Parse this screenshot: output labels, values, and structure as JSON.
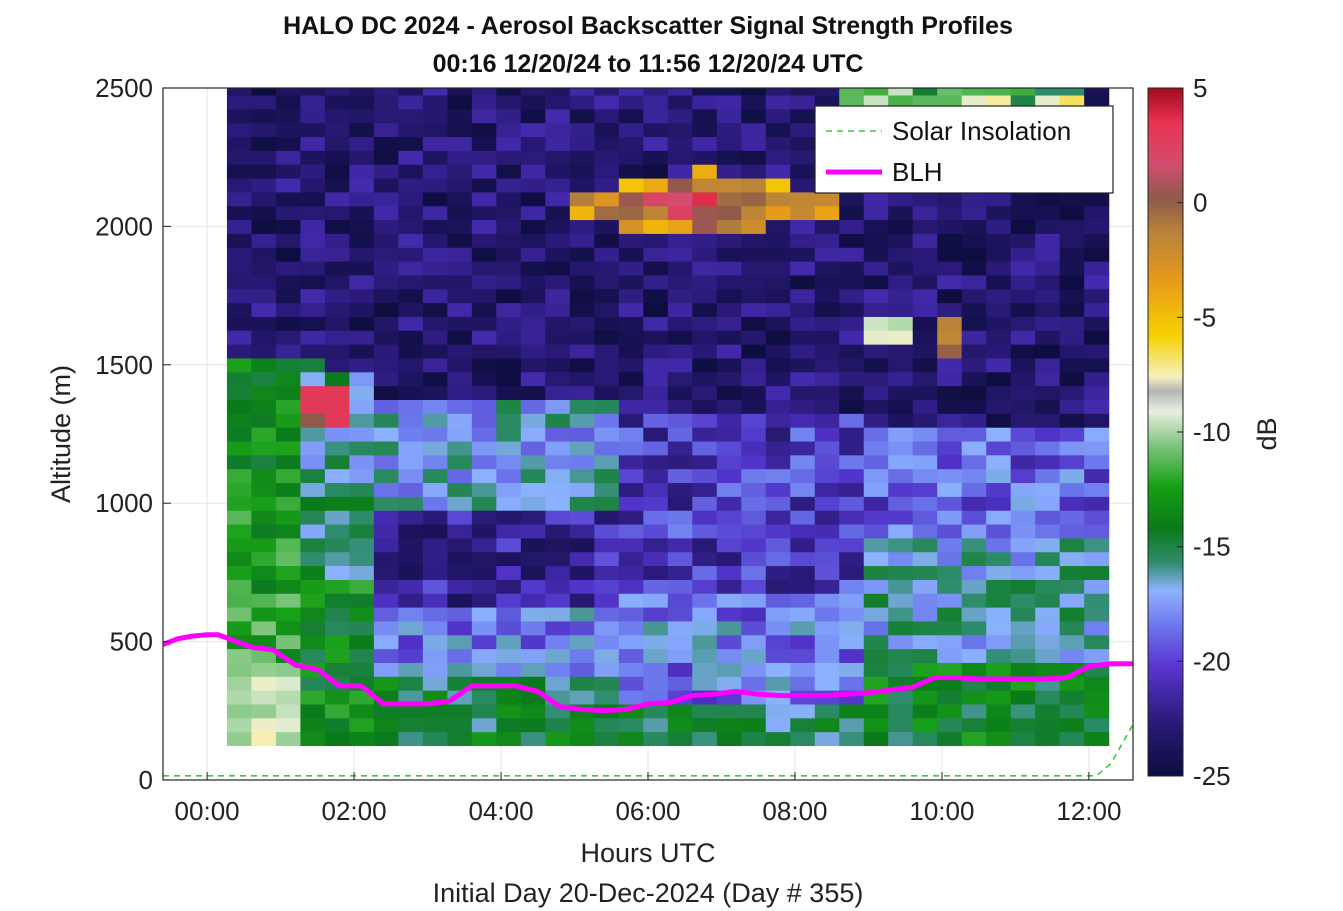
{
  "chart_data": {
    "type": "heatmap",
    "title": "HALO DC 2024 - Aerosol Backscatter Signal Strength Profiles",
    "subtitle": "00:16 12/20/24 to 11:56 12/20/24  UTC",
    "xlabel": "Hours UTC",
    "xsublabel": "Initial Day 20-Dec-2024 (Day # 355)",
    "ylabel": "Altitude (m)",
    "colorbar_label": "dB",
    "xlim": [
      -0.6,
      12.6
    ],
    "ylim": [
      0,
      2500
    ],
    "xticks": [
      0,
      2,
      4,
      6,
      8,
      10,
      12
    ],
    "xtick_labels": [
      "00:00",
      "02:00",
      "04:00",
      "06:00",
      "08:00",
      "10:00",
      "12:00"
    ],
    "yticks": [
      0,
      500,
      1000,
      1500,
      2000,
      2500
    ],
    "ytick_labels": [
      "0",
      "500",
      "1000",
      "1500",
      "2000",
      "2500"
    ],
    "clim": [
      -25,
      5
    ],
    "cticks": [
      5,
      0,
      -5,
      -10,
      -15,
      -20,
      -25
    ],
    "ctick_labels": [
      "5",
      "0",
      "-5",
      "-10",
      "-15",
      "-20",
      "-25"
    ],
    "grid": true,
    "legend": {
      "placement": "top-right",
      "entries": [
        {
          "label": "Solar Insolation",
          "color": "#33cc33",
          "style": "dashed"
        },
        {
          "label": "BLH",
          "color": "#ff00ff",
          "style": "solid"
        }
      ]
    },
    "heatmap": {
      "x_start": 0.27,
      "x_step": 0.3333,
      "ncols": 36,
      "y_start": 125,
      "y_step": 50,
      "nrows": 48
    },
    "series": [
      {
        "name": "BLH",
        "color": "#ff00ff",
        "x": [
          -0.6,
          -0.4,
          -0.2,
          0.0,
          0.15,
          0.6,
          0.9,
          1.2,
          1.5,
          1.8,
          2.1,
          2.4,
          2.7,
          3.0,
          3.3,
          3.6,
          3.9,
          4.2,
          4.5,
          4.8,
          5.1,
          5.4,
          5.7,
          6.0,
          6.3,
          6.6,
          6.9,
          7.2,
          7.5,
          7.8,
          8.1,
          8.4,
          8.7,
          9.0,
          9.3,
          9.6,
          9.9,
          10.2,
          10.5,
          10.8,
          11.1,
          11.4,
          11.7,
          12.0,
          12.3,
          12.6
        ],
        "y": [
          490,
          510,
          520,
          525,
          525,
          480,
          470,
          415,
          400,
          340,
          340,
          275,
          275,
          275,
          285,
          340,
          340,
          340,
          320,
          265,
          255,
          250,
          255,
          275,
          280,
          305,
          310,
          320,
          310,
          305,
          305,
          305,
          310,
          315,
          325,
          335,
          370,
          370,
          365,
          365,
          365,
          365,
          370,
          410,
          420,
          420
        ]
      },
      {
        "name": "Solar Insolation",
        "color": "#33cc33",
        "x": [
          -0.6,
          12.1,
          12.3,
          12.6
        ],
        "y": [
          15,
          15,
          60,
          200
        ]
      }
    ]
  }
}
